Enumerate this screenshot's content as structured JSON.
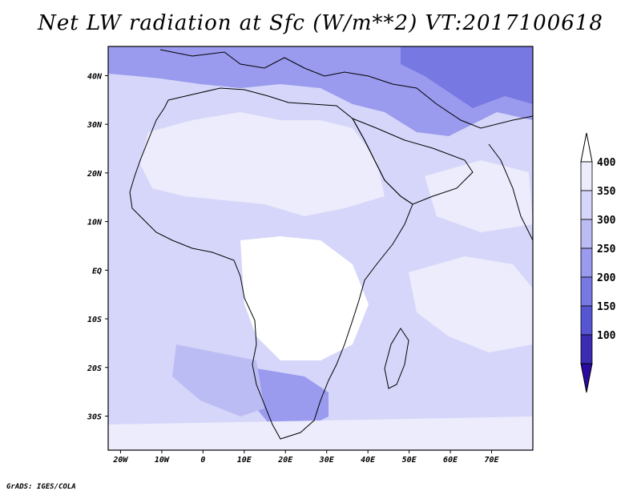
{
  "map": {
    "title": "Net LW radiation at Sfc (W/m**2) VT:2017100618",
    "variable_units": "W/m**2",
    "valid_time": "2017100618",
    "lon_ticks": [
      {
        "lon": -20,
        "label": "20W"
      },
      {
        "lon": -10,
        "label": "10W"
      },
      {
        "lon": 0,
        "label": "0"
      },
      {
        "lon": 10,
        "label": "10E"
      },
      {
        "lon": 20,
        "label": "20E"
      },
      {
        "lon": 30,
        "label": "30E"
      },
      {
        "lon": 40,
        "label": "40E"
      },
      {
        "lon": 50,
        "label": "50E"
      },
      {
        "lon": 60,
        "label": "60E"
      },
      {
        "lon": 70,
        "label": "70E"
      }
    ],
    "lat_ticks": [
      {
        "lat": 40,
        "label": "40N"
      },
      {
        "lat": 30,
        "label": "30N"
      },
      {
        "lat": 20,
        "label": "20N"
      },
      {
        "lat": 10,
        "label": "10N"
      },
      {
        "lat": 0,
        "label": "EQ"
      },
      {
        "lat": -10,
        "label": "10S"
      },
      {
        "lat": -20,
        "label": "20S"
      },
      {
        "lat": -30,
        "label": "30S"
      }
    ],
    "extent": {
      "lon_min": -23,
      "lon_max": 80,
      "lat_min": -37,
      "lat_max": 46
    }
  },
  "colorbar": {
    "levels": [
      {
        "label": "400",
        "color": "#ececfc"
      },
      {
        "label": "350",
        "color": "#d6d6fa"
      },
      {
        "label": "300",
        "color": "#bcbcf4"
      },
      {
        "label": "250",
        "color": "#9a9aee"
      },
      {
        "label": "200",
        "color": "#7878e2"
      },
      {
        "label": "150",
        "color": "#5656d2"
      },
      {
        "label": "100",
        "color": "#3c2cb4"
      }
    ],
    "top_arrow_color": "#ffffff",
    "bottom_arrow_color": "#2a0aa0"
  },
  "footer": "GrADS: IGES/COLA"
}
